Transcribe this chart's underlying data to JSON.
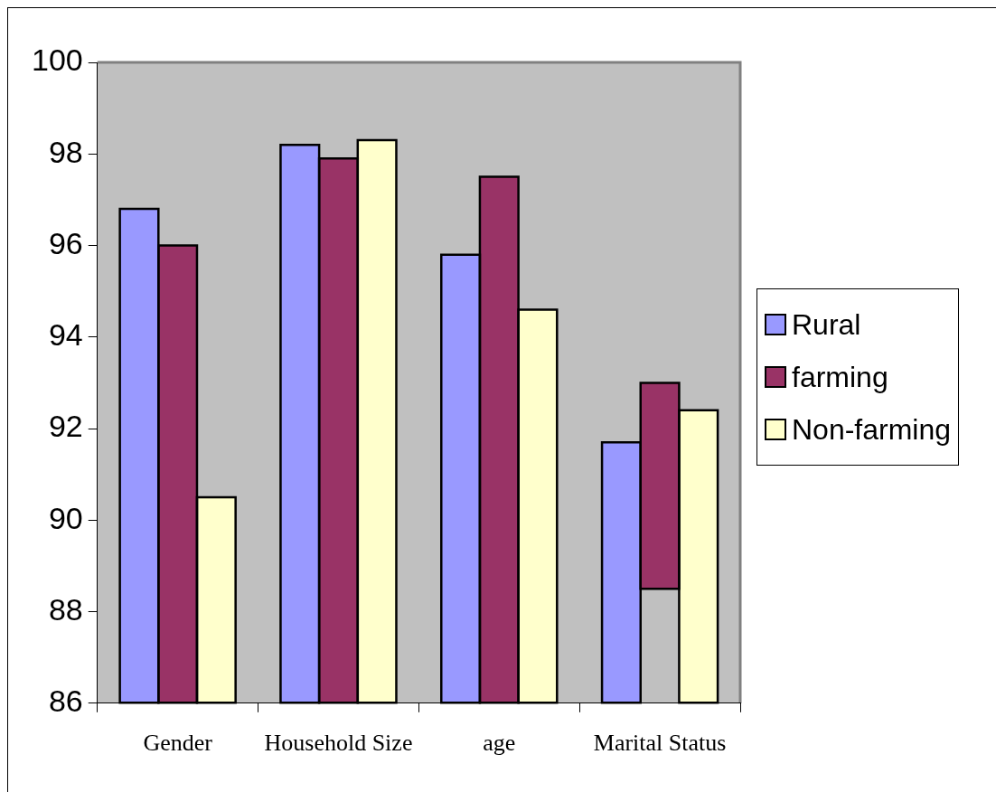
{
  "chart_data": {
    "type": "bar",
    "categories": [
      "Gender",
      "Household Size",
      "age",
      "Marital Status"
    ],
    "series": [
      {
        "name": "Rural",
        "color": "#9999ff",
        "values": [
          96.8,
          98.2,
          95.8,
          91.7
        ]
      },
      {
        "name": "farming",
        "color": "#993366",
        "values": [
          96.0,
          97.9,
          97.5,
          4.5
        ],
        "base": [
          null,
          null,
          null,
          88.5
        ]
      },
      {
        "name": "Non-farming",
        "color": "#ffffcc",
        "values": [
          90.5,
          98.3,
          94.6,
          92.4
        ]
      }
    ],
    "ylim": [
      86,
      100
    ],
    "yticks": [
      86,
      88,
      90,
      92,
      94,
      96,
      98,
      100
    ],
    "grid": false,
    "legend": "right"
  }
}
